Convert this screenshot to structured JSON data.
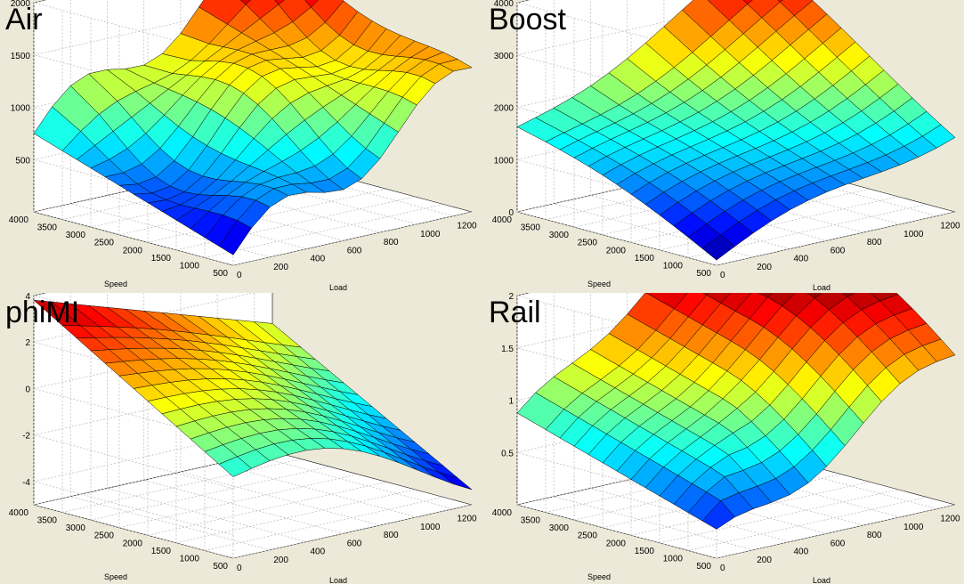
{
  "colors": {
    "background": "#ece9d8",
    "axes_face": "#ffffff",
    "grid": "#bfbfbf",
    "edge": "#000000",
    "colormap": "jet"
  },
  "chart_data": [
    {
      "type": "surface",
      "title": "Air",
      "xlabel": "Load",
      "ylabel": "Speed",
      "xlim": [
        0,
        1300
      ],
      "ylim": [
        500,
        4000
      ],
      "zlim": [
        0,
        2000
      ],
      "xticks": [
        "0",
        "200",
        "400",
        "600",
        "800",
        "1000",
        "1200"
      ],
      "yticks": [
        "500",
        "1000",
        "1500",
        "2000",
        "2500",
        "3000",
        "3500",
        "4000"
      ],
      "zticks": [
        "500",
        "1000",
        "1500",
        "2000"
      ],
      "grid": true,
      "x": [
        0,
        100,
        200,
        300,
        400,
        500,
        600,
        700,
        800,
        900,
        1000,
        1100,
        1200,
        1300
      ],
      "y": [
        500,
        750,
        1000,
        1250,
        1500,
        1750,
        2000,
        2250,
        2500,
        2750,
        3000,
        3250,
        3500,
        4000
      ],
      "surface_description": "Air mass rises with both load and speed; corner values in data units",
      "z_corners": {
        "min_load_min_speed": 100,
        "min_load_max_speed": 750,
        "max_load_min_speed": 1300,
        "max_load_max_speed": 2000
      }
    },
    {
      "type": "surface",
      "title": "Boost",
      "xlabel": "Load",
      "ylabel": "Speed",
      "xlim": [
        0,
        1300
      ],
      "ylim": [
        500,
        4000
      ],
      "zlim": [
        0,
        4000
      ],
      "xticks": [
        "0",
        "200",
        "400",
        "600",
        "800",
        "1000",
        "1200"
      ],
      "yticks": [
        "500",
        "1000",
        "1500",
        "2000",
        "2500",
        "3000",
        "3500",
        "4000"
      ],
      "zticks": [
        "0",
        "1000",
        "2000",
        "3000",
        "4000"
      ],
      "grid": true,
      "x": [
        0,
        100,
        200,
        300,
        400,
        500,
        600,
        700,
        800,
        900,
        1000,
        1100,
        1200,
        1300
      ],
      "y": [
        500,
        750,
        1000,
        1250,
        1500,
        1750,
        2000,
        2250,
        2500,
        2750,
        3000,
        3250,
        3500,
        4000
      ],
      "z_corners": {
        "min_load_min_speed": 100,
        "min_load_max_speed": 1600,
        "max_load_min_speed": 1600,
        "max_load_max_speed": 3800
      }
    },
    {
      "type": "surface",
      "title": "phiMI",
      "xlabel": "Load",
      "ylabel": "Speed",
      "xlim": [
        0,
        1300
      ],
      "ylim": [
        500,
        4000
      ],
      "zlim": [
        -5,
        4
      ],
      "xticks": [
        "0",
        "200",
        "400",
        "600",
        "800",
        "1000",
        "1200"
      ],
      "yticks": [
        "500",
        "1000",
        "1500",
        "2000",
        "2500",
        "3000",
        "3500",
        "4000"
      ],
      "zticks": [
        "-4",
        "-2",
        "0",
        "2",
        "4"
      ],
      "grid": true,
      "x": [
        0,
        100,
        200,
        300,
        400,
        500,
        600,
        700,
        800,
        900,
        1000,
        1100,
        1200,
        1300
      ],
      "y": [
        500,
        750,
        1000,
        1250,
        1500,
        1750,
        2000,
        2250,
        2500,
        2750,
        3000,
        3250,
        3500,
        4000
      ],
      "z_corners": {
        "min_load_min_speed": -1.5,
        "min_load_max_speed": 3.8,
        "max_load_min_speed": -3.5,
        "max_load_max_speed": 0.5
      }
    },
    {
      "type": "surface",
      "title": "Rail",
      "xlabel": "Load",
      "ylabel": "Speed",
      "xlim": [
        0,
        1300
      ],
      "ylim": [
        500,
        4000
      ],
      "zlim": [
        0,
        2
      ],
      "xticks": [
        "0",
        "200",
        "400",
        "600",
        "800",
        "1000",
        "1200"
      ],
      "yticks": [
        "500",
        "1000",
        "1500",
        "2000",
        "2500",
        "3000",
        "3500",
        "4000"
      ],
      "zticks": [
        "0.5",
        "1",
        "1.5",
        "2"
      ],
      "grid": true,
      "x": [
        0,
        100,
        200,
        300,
        400,
        500,
        600,
        700,
        800,
        900,
        1000,
        1100,
        1200,
        1300
      ],
      "y": [
        500,
        750,
        1000,
        1250,
        1500,
        1750,
        2000,
        2250,
        2500,
        2750,
        3000,
        3250,
        3500,
        4000
      ],
      "z_corners": {
        "min_load_min_speed": 0.15,
        "min_load_max_speed": 0.75,
        "max_load_min_speed": 1.45,
        "max_load_max_speed": 2.0
      }
    }
  ]
}
